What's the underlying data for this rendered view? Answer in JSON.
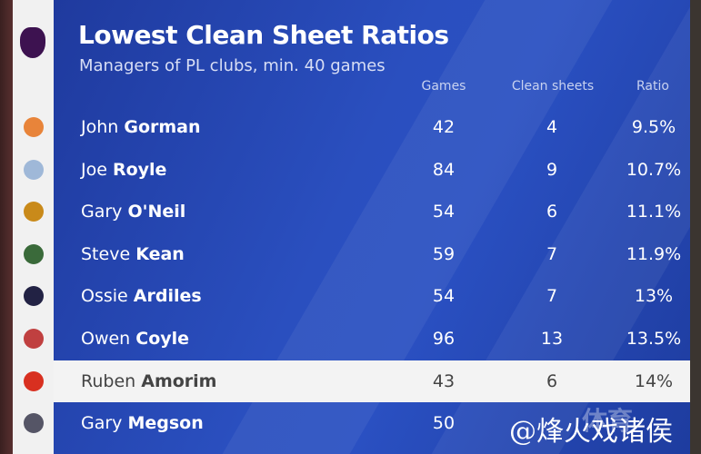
{
  "title": "Lowest Clean Sheet Ratios",
  "subtitle": "Managers of PL clubs, min. 40 games",
  "headers": {
    "games": "Games",
    "clean_sheets": "Clean sheets",
    "ratio": "Ratio"
  },
  "rows": [
    {
      "first": "John",
      "last": "Gorman",
      "games": "42",
      "clean_sheets": "4",
      "ratio": "9.5%",
      "logo_color": "#e8843a"
    },
    {
      "first": "Joe",
      "last": "Royle",
      "games": "84",
      "clean_sheets": "9",
      "ratio": "10.7%",
      "logo_color": "#9fb8d8"
    },
    {
      "first": "Gary",
      "last": "O'Neil",
      "games": "54",
      "clean_sheets": "6",
      "ratio": "11.1%",
      "logo_color": "#c98a1a"
    },
    {
      "first": "Steve",
      "last": "Kean",
      "games": "59",
      "clean_sheets": "7",
      "ratio": "11.9%",
      "logo_color": "#3a6a3a"
    },
    {
      "first": "Ossie",
      "last": "Ardiles",
      "games": "54",
      "clean_sheets": "7",
      "ratio": "13%",
      "logo_color": "#222244"
    },
    {
      "first": "Owen",
      "last": "Coyle",
      "games": "96",
      "clean_sheets": "13",
      "ratio": "13.5%",
      "logo_color": "#c04040"
    },
    {
      "first": "Ruben",
      "last": "Amorim",
      "games": "43",
      "clean_sheets": "6",
      "ratio": "14%",
      "logo_color": "#d83020",
      "highlight": true
    },
    {
      "first": "Gary",
      "last": "Megson",
      "games": "50",
      "clean_sheets": "",
      "ratio": "",
      "logo_color": "#556"
    }
  ],
  "watermark": "@烽火戏诸侯",
  "watermark_faint": "体育",
  "colors": {
    "panel": "#2a4fbf",
    "highlight_row": "#f3f3f3"
  }
}
